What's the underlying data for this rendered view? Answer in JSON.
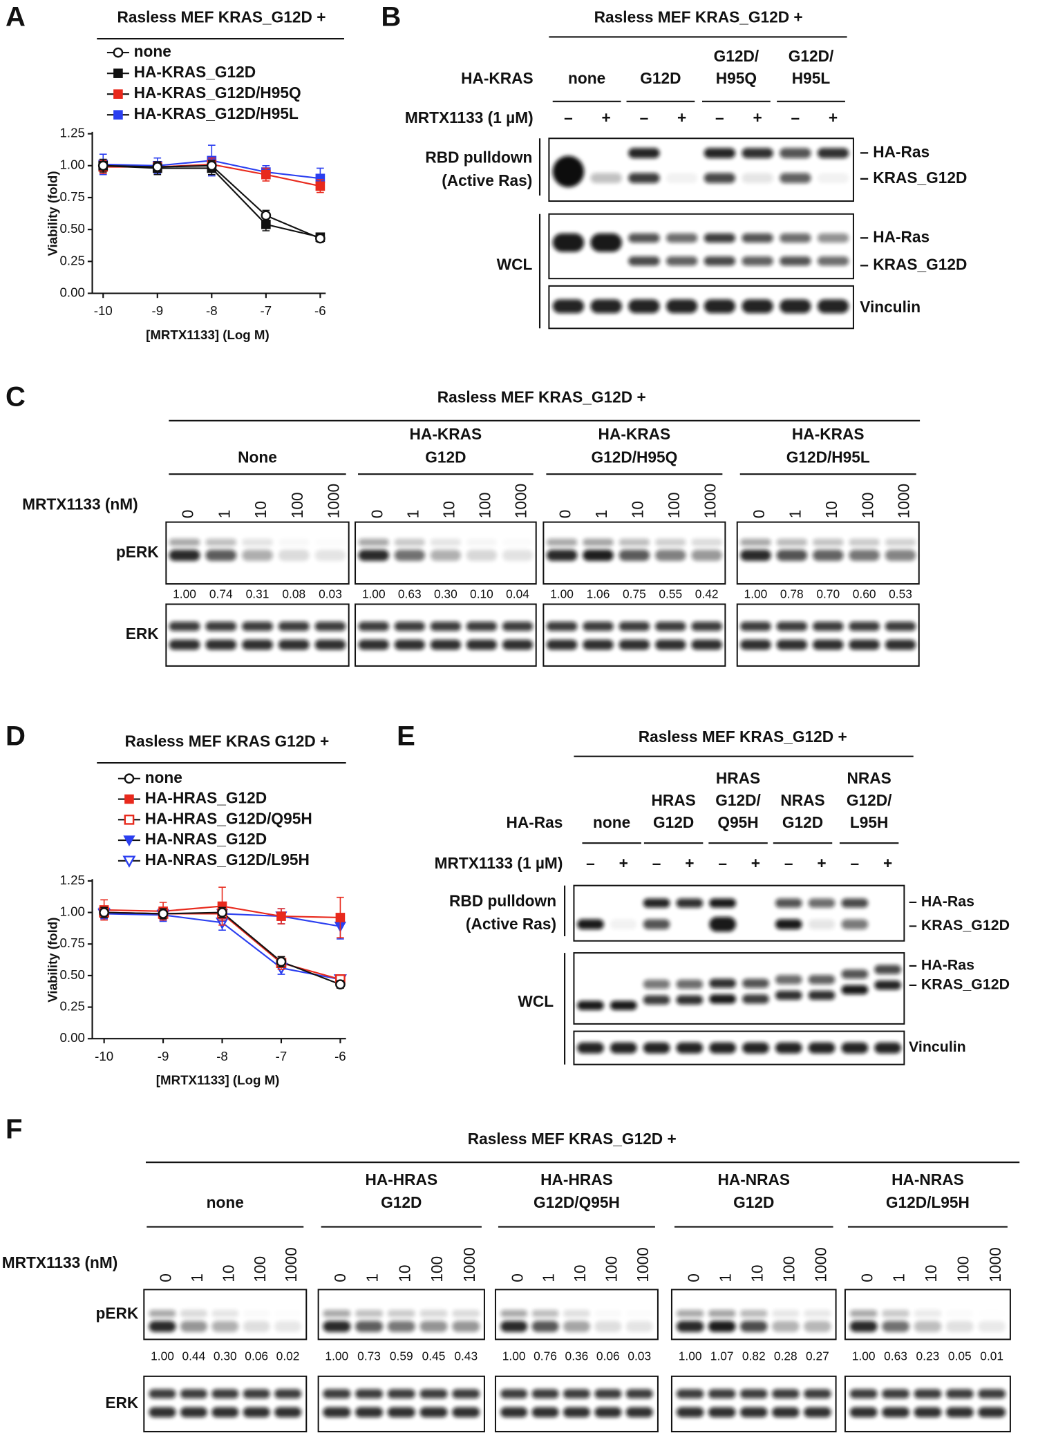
{
  "panel_labels": [
    "A",
    "B",
    "C",
    "D",
    "E",
    "F"
  ],
  "chart_data": [
    {
      "type": "line",
      "title": "Rasless MEF KRAS_G12D +",
      "xlabel": "[MRTX1133] (Log M)",
      "ylabel": "Viability (fold)",
      "x": [
        -10,
        -9,
        -8,
        -7,
        -6
      ],
      "xlim": [
        -10.2,
        -5.95
      ],
      "xticks": [
        -10,
        -9,
        -8,
        -7,
        -6
      ],
      "ylim": [
        0,
        1.25
      ],
      "yticks": [
        {
          "value": 0,
          "label": "0.00"
        },
        {
          "value": 0.25,
          "label": "0.25"
        },
        {
          "value": 0.5,
          "label": "0.50"
        },
        {
          "value": 0.75,
          "label": "0.75"
        },
        {
          "value": 1,
          "label": "1.00"
        },
        {
          "value": 1.25,
          "label": "1.25"
        }
      ],
      "series": [
        {
          "name": "none",
          "color": "#111111",
          "marker": "circle-open",
          "values": [
            1.0,
            0.99,
            1.0,
            0.61,
            0.43
          ],
          "errors": [
            0.03,
            0.03,
            0.04,
            0.04,
            0.03
          ]
        },
        {
          "name": "HA-KRAS_G12D",
          "color": "#111111",
          "marker": "square",
          "values": [
            1.0,
            0.98,
            0.98,
            0.54,
            0.44
          ],
          "errors": [
            0.05,
            0.05,
            0.05,
            0.05,
            0.03
          ]
        },
        {
          "name": "HA-KRAS_G12D/H95Q",
          "color": "#e8291c",
          "marker": "square",
          "values": [
            0.99,
            0.99,
            1.01,
            0.93,
            0.84
          ],
          "errors": [
            0.05,
            0.04,
            0.05,
            0.05,
            0.05
          ]
        },
        {
          "name": "HA-KRAS_G12D/H95L",
          "color": "#2b3ff0",
          "marker": "square",
          "values": [
            1.01,
            1.0,
            1.04,
            0.95,
            0.9
          ],
          "errors": [
            0.08,
            0.06,
            0.12,
            0.05,
            0.08
          ]
        }
      ]
    },
    {
      "type": "line",
      "title": "Rasless MEF KRAS G12D +",
      "xlabel": "[MRTX1133] (Log M)",
      "ylabel": "Viability (fold)",
      "x": [
        -10,
        -9,
        -8,
        -7,
        -6
      ],
      "xlim": [
        -10.2,
        -5.95
      ],
      "xticks": [
        -10,
        -9,
        -8,
        -7,
        -6
      ],
      "ylim": [
        0,
        1.25
      ],
      "yticks": [
        {
          "value": 0,
          "label": "0.00"
        },
        {
          "value": 0.25,
          "label": "0.25"
        },
        {
          "value": 0.5,
          "label": "0.50"
        },
        {
          "value": 0.75,
          "label": "0.75"
        },
        {
          "value": 1,
          "label": "1.00"
        },
        {
          "value": 1.25,
          "label": "1.25"
        }
      ],
      "series": [
        {
          "name": "none",
          "color": "#111111",
          "marker": "circle-open",
          "values": [
            1.0,
            0.99,
            1.0,
            0.61,
            0.43
          ],
          "errors": [
            0.04,
            0.04,
            0.04,
            0.04,
            0.03
          ]
        },
        {
          "name": "HA-HRAS_G12D",
          "color": "#e8291c",
          "marker": "square",
          "values": [
            1.02,
            1.01,
            1.05,
            0.97,
            0.96
          ],
          "errors": [
            0.08,
            0.07,
            0.15,
            0.06,
            0.16
          ]
        },
        {
          "name": "HA-HRAS_G12D/Q95H",
          "color": "#e8291c",
          "marker": "square-open",
          "values": [
            1.0,
            0.99,
            0.99,
            0.6,
            0.47
          ],
          "errors": [
            0.04,
            0.04,
            0.05,
            0.05,
            0.03
          ]
        },
        {
          "name": "HA-NRAS_G12D",
          "color": "#2b3ff0",
          "marker": "triangle-down",
          "values": [
            1.0,
            0.99,
            0.99,
            0.97,
            0.89
          ],
          "errors": [
            0.05,
            0.05,
            0.06,
            0.06,
            0.1
          ]
        },
        {
          "name": "HA-NRAS_G12D/L95H",
          "color": "#2b3ff0",
          "marker": "triangle-down-open",
          "values": [
            0.99,
            0.98,
            0.92,
            0.56,
            0.47
          ],
          "errors": [
            0.04,
            0.05,
            0.06,
            0.05,
            0.03
          ]
        }
      ]
    }
  ],
  "panel_b": {
    "title": "Rasless MEF KRAS_G12D +",
    "row_label": "HA-KRAS",
    "groups": [
      [
        "none"
      ],
      [
        "G12D"
      ],
      [
        "G12D/",
        "H95Q"
      ],
      [
        "G12D/",
        "H95L"
      ]
    ],
    "treatment_label": "MRTX1133 (1 µM)",
    "signs": [
      "–",
      "+"
    ],
    "left_labels": [
      "RBD pulldown",
      "(Active Ras)",
      "WCL"
    ],
    "right_labels": [
      "– HA-Ras",
      "– KRAS_G12D",
      "– HA-Ras",
      "– KRAS_G12D",
      "Vinculin"
    ]
  },
  "panel_c": {
    "title": "Rasless MEF KRAS_G12D +",
    "groups": [
      [
        "None"
      ],
      [
        "HA-KRAS",
        "G12D"
      ],
      [
        "HA-KRAS",
        "G12D/H95Q"
      ],
      [
        "HA-KRAS",
        "G12D/H95L"
      ]
    ],
    "treatment_label": "MRTX1133 (nM)",
    "doses": [
      0,
      1,
      10,
      100,
      1000
    ],
    "rows": [
      "pERK",
      "ERK"
    ],
    "quantification": [
      {
        "values": [
          1,
          0.74,
          0.31,
          0.08,
          0.03
        ],
        "value_labels": [
          "1.00",
          "0.74",
          "0.31",
          "0.08",
          "0.03"
        ]
      },
      {
        "values": [
          1,
          0.63,
          0.3,
          0.1,
          0.04
        ],
        "value_labels": [
          "1.00",
          "0.63",
          "0.30",
          "0.10",
          "0.04"
        ]
      },
      {
        "values": [
          1,
          1.06,
          0.75,
          0.55,
          0.42
        ],
        "value_labels": [
          "1.00",
          "1.06",
          "0.75",
          "0.55",
          "0.42"
        ]
      },
      {
        "values": [
          1,
          0.78,
          0.7,
          0.6,
          0.53
        ],
        "value_labels": [
          "1.00",
          "0.78",
          "0.70",
          "0.60",
          "0.53"
        ]
      }
    ]
  },
  "panel_e": {
    "title": "Rasless MEF KRAS_G12D +",
    "row_label": "HA-Ras",
    "groups": [
      [
        "none"
      ],
      [
        "HRAS",
        "G12D"
      ],
      [
        "HRAS",
        "G12D/",
        "Q95H"
      ],
      [
        "NRAS",
        "G12D"
      ],
      [
        "NRAS",
        "G12D/",
        "L95H"
      ]
    ],
    "treatment_label": "MRTX1133 (1 µM)",
    "signs": [
      "–",
      "+"
    ],
    "left_labels": [
      "RBD pulldown",
      "(Active Ras)",
      "WCL"
    ],
    "right_labels": [
      "– HA-Ras",
      "– KRAS_G12D",
      "– HA-Ras",
      "– KRAS_G12D",
      "Vinculin"
    ]
  },
  "panel_f": {
    "title": "Rasless MEF KRAS_G12D +",
    "groups": [
      [
        "none"
      ],
      [
        "HA-HRAS",
        "G12D"
      ],
      [
        "HA-HRAS",
        "G12D/Q95H"
      ],
      [
        "HA-NRAS",
        "G12D"
      ],
      [
        "HA-NRAS",
        "G12D/L95H"
      ]
    ],
    "treatment_label": "MRTX1133 (nM)",
    "doses": [
      0,
      1,
      10,
      100,
      1000
    ],
    "rows": [
      "pERK",
      "ERK"
    ],
    "quantification": [
      {
        "values": [
          1,
          0.44,
          0.3,
          0.06,
          0.02
        ],
        "value_labels": [
          "1.00",
          "0.44",
          "0.30",
          "0.06",
          "0.02"
        ]
      },
      {
        "values": [
          1,
          0.73,
          0.59,
          0.45,
          0.43
        ],
        "value_labels": [
          "1.00",
          "0.73",
          "0.59",
          "0.45",
          "0.43"
        ]
      },
      {
        "values": [
          1,
          0.76,
          0.36,
          0.06,
          0.03
        ],
        "value_labels": [
          "1.00",
          "0.76",
          "0.36",
          "0.06",
          "0.03"
        ]
      },
      {
        "values": [
          1,
          1.07,
          0.82,
          0.28,
          0.27
        ],
        "value_labels": [
          "1.00",
          "1.07",
          "0.82",
          "0.28",
          "0.27"
        ]
      },
      {
        "values": [
          1,
          0.63,
          0.23,
          0.05,
          0.01
        ],
        "value_labels": [
          "1.00",
          "0.63",
          "0.23",
          "0.05",
          "0.01"
        ]
      }
    ]
  }
}
